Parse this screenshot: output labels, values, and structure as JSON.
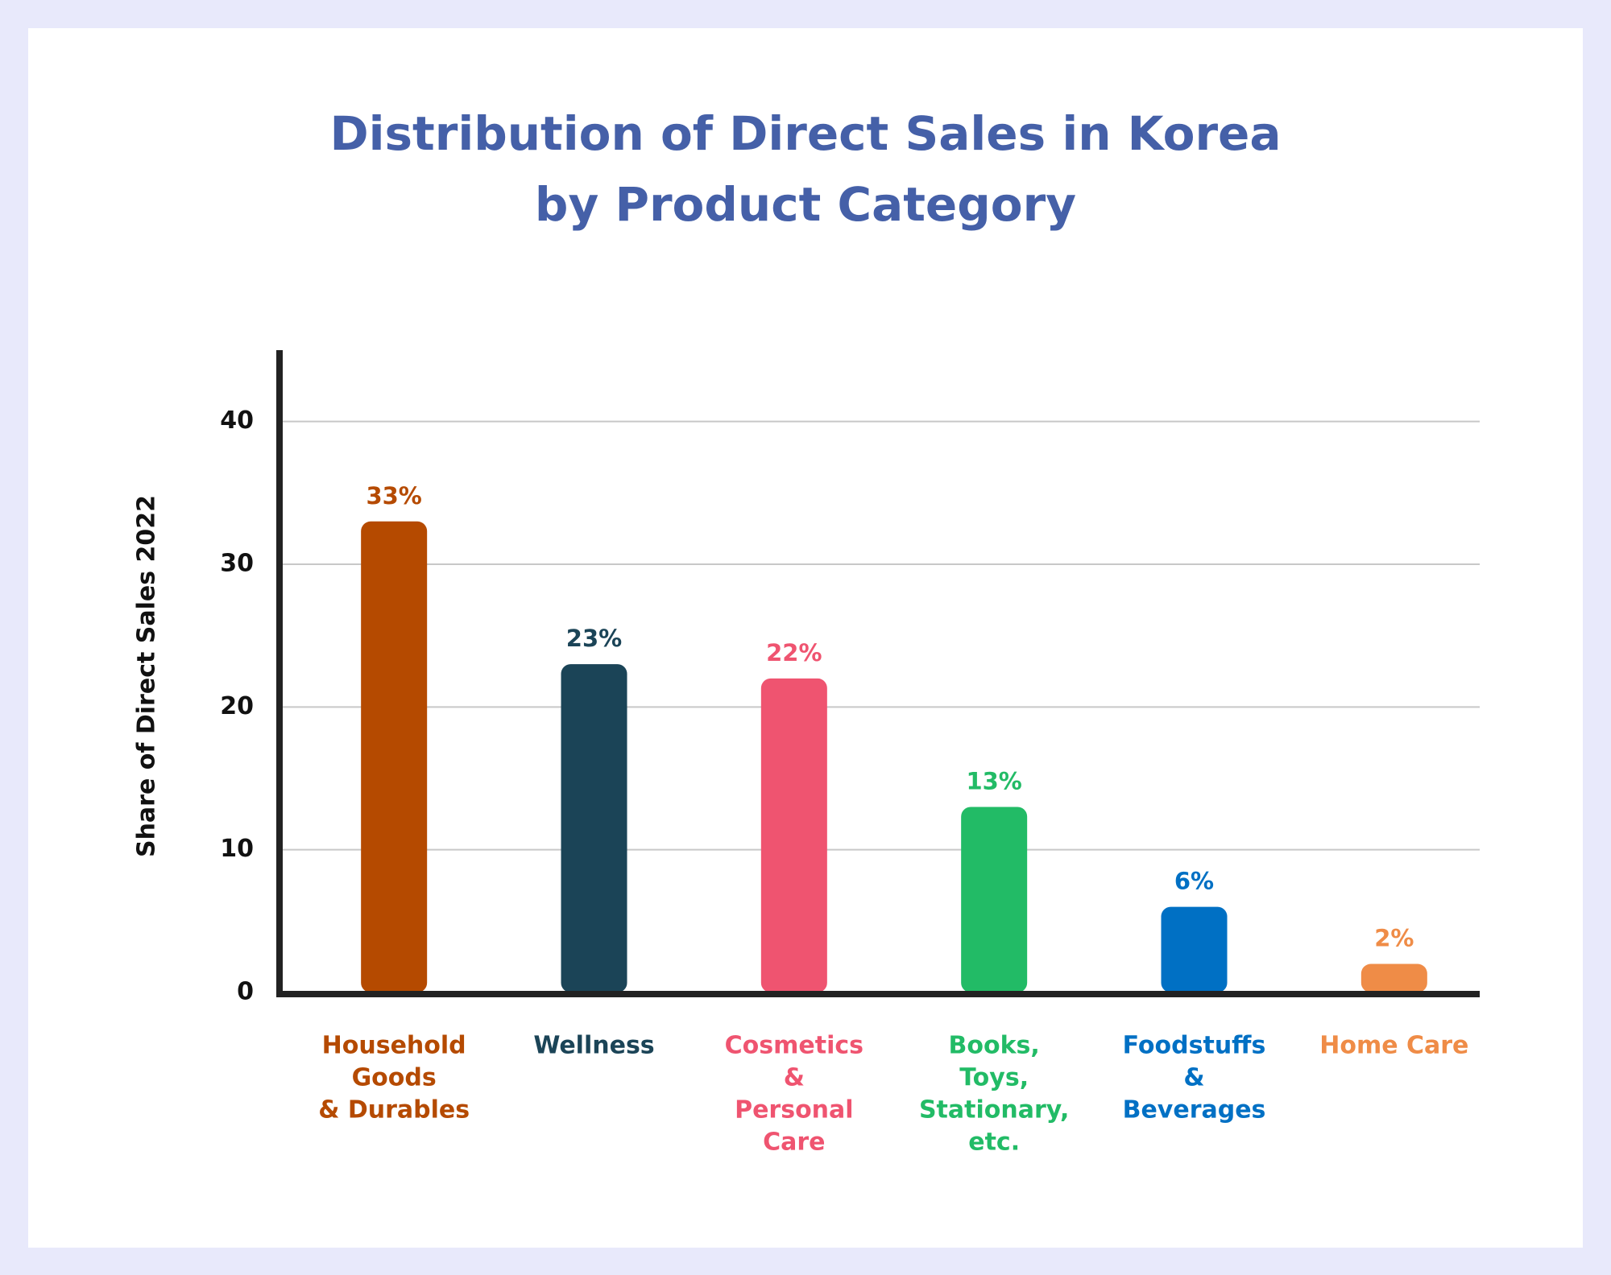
{
  "chart_data": {
    "type": "bar",
    "title": [
      "Distribution of Direct Sales in Korea",
      "by Product Category"
    ],
    "y_label": "Share of Direct Sales 2022",
    "categories": [
      [
        "Household",
        "Goods",
        "& Durables"
      ],
      [
        "Wellness"
      ],
      [
        "Cosmetics",
        "&",
        "Personal",
        "Care"
      ],
      [
        "Books,",
        "Toys,",
        "Stationary,",
        "etc."
      ],
      [
        "Foodstuffs",
        "&",
        "Beverages"
      ],
      [
        "Home Care"
      ]
    ],
    "values": [
      33,
      23,
      22,
      13,
      6,
      2
    ],
    "value_labels": [
      "33%",
      "23%",
      "22%",
      "13%",
      "6%",
      "2%"
    ],
    "colors": [
      "#b54a00",
      "#1b4457",
      "#ef5470",
      "#22bb66",
      "#0070c4",
      "#ef8c47"
    ],
    "ylim": [
      0,
      45
    ],
    "yticks": [
      0,
      10,
      20,
      30,
      40
    ],
    "grid": true
  }
}
